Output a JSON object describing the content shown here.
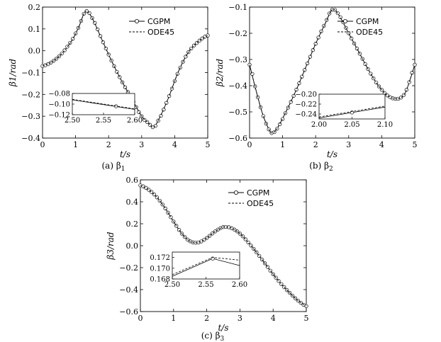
{
  "chart_data": [
    {
      "type": "line",
      "caption": "(a) β1",
      "xlabel": "t/s",
      "ylabel": "β1/rad",
      "xlim": [
        0,
        5
      ],
      "ylim": [
        -0.4,
        0.2
      ],
      "xticks": [
        0,
        1,
        2,
        3,
        4,
        5
      ],
      "yticks": [
        -0.4,
        -0.3,
        -0.2,
        -0.1,
        0.0,
        0.1,
        0.2
      ],
      "xtick_labels": [
        "0",
        "1",
        "2",
        "3",
        "4",
        "5"
      ],
      "ytick_labels": [
        "−0.4",
        "−0.3",
        "−0.2",
        "−0.1",
        "0.0",
        "0.1",
        "0.2"
      ],
      "legend": "top-right",
      "series": [
        {
          "name": "CGPM",
          "style": "solid-circle-markers",
          "x": [
            0,
            0.3,
            0.6,
            0.9,
            1.1,
            1.3,
            1.5,
            1.8,
            2.1,
            2.4,
            2.7,
            3.0,
            3.2,
            3.35,
            3.5,
            3.8,
            4.1,
            4.4,
            4.7,
            5.0
          ],
          "y": [
            -0.07,
            -0.05,
            -0.01,
            0.05,
            0.11,
            0.18,
            0.15,
            0.05,
            -0.05,
            -0.14,
            -0.22,
            -0.3,
            -0.33,
            -0.35,
            -0.32,
            -0.22,
            -0.1,
            -0.01,
            0.04,
            0.07
          ]
        },
        {
          "name": "ODE45",
          "style": "dashed",
          "x": [
            0,
            0.3,
            0.6,
            0.9,
            1.1,
            1.3,
            1.5,
            1.8,
            2.1,
            2.4,
            2.7,
            3.0,
            3.2,
            3.35,
            3.5,
            3.8,
            4.1,
            4.4,
            4.7,
            5.0
          ],
          "y": [
            -0.07,
            -0.05,
            -0.01,
            0.05,
            0.11,
            0.18,
            0.15,
            0.05,
            -0.05,
            -0.14,
            -0.22,
            -0.3,
            -0.33,
            -0.35,
            -0.32,
            -0.22,
            -0.1,
            -0.01,
            0.04,
            0.07
          ]
        }
      ],
      "inset": {
        "xlim": [
          2.5,
          2.6
        ],
        "ylim": [
          -0.12,
          -0.08
        ],
        "xtick_labels": [
          "2.50",
          "2.55",
          "2.60"
        ],
        "ytick_labels": [
          "−0.08",
          "−0.10",
          "−0.12"
        ],
        "xticks": [
          2.5,
          2.55,
          2.6
        ],
        "yticks": [
          -0.08,
          -0.1,
          -0.12
        ],
        "series": [
          {
            "name": "CGPM",
            "x": [
              2.5,
              2.6
            ],
            "y": [
              -0.092,
              -0.11
            ],
            "markers": [
              [
                2.57,
                -0.104
              ]
            ]
          },
          {
            "name": "ODE45",
            "x": [
              2.5,
              2.6
            ],
            "y": [
              -0.091,
              -0.109
            ]
          }
        ]
      }
    },
    {
      "type": "line",
      "caption": "(b) β2",
      "xlabel": "t/s",
      "ylabel": "β2/rad",
      "xlim": [
        0,
        5
      ],
      "ylim": [
        -0.6,
        -0.1
      ],
      "xticks": [
        0,
        1,
        2,
        3,
        4,
        5
      ],
      "yticks": [
        -0.6,
        -0.5,
        -0.4,
        -0.3,
        -0.2,
        -0.1
      ],
      "xtick_labels": [
        "0",
        "1",
        "2",
        "3",
        "4",
        "5"
      ],
      "ytick_labels": [
        "−0.6",
        "−0.5",
        "−0.4",
        "−0.3",
        "−0.2",
        "−0.1"
      ],
      "legend": "top-right",
      "series": [
        {
          "name": "CGPM",
          "style": "solid-circle-markers",
          "x": [
            0,
            0.2,
            0.4,
            0.6,
            0.7,
            0.85,
            1.1,
            1.4,
            1.7,
            2.0,
            2.3,
            2.5,
            2.7,
            3.0,
            3.3,
            3.6,
            3.9,
            4.2,
            4.5,
            4.7,
            4.85,
            5.0
          ],
          "y": [
            -0.32,
            -0.42,
            -0.51,
            -0.57,
            -0.58,
            -0.56,
            -0.5,
            -0.42,
            -0.33,
            -0.24,
            -0.16,
            -0.11,
            -0.13,
            -0.2,
            -0.27,
            -0.34,
            -0.4,
            -0.44,
            -0.45,
            -0.43,
            -0.38,
            -0.32
          ]
        },
        {
          "name": "ODE45",
          "style": "dashed",
          "x": [
            0,
            0.2,
            0.4,
            0.6,
            0.7,
            0.85,
            1.1,
            1.4,
            1.7,
            2.0,
            2.3,
            2.5,
            2.7,
            3.0,
            3.3,
            3.6,
            3.9,
            4.2,
            4.5,
            4.7,
            4.85,
            5.0
          ],
          "y": [
            -0.32,
            -0.42,
            -0.51,
            -0.57,
            -0.58,
            -0.56,
            -0.5,
            -0.42,
            -0.33,
            -0.24,
            -0.16,
            -0.11,
            -0.13,
            -0.2,
            -0.27,
            -0.34,
            -0.4,
            -0.44,
            -0.45,
            -0.43,
            -0.38,
            -0.32
          ]
        }
      ],
      "inset": {
        "xlim": [
          2.0,
          2.1
        ],
        "ylim": [
          -0.25,
          -0.2
        ],
        "xtick_labels": [
          "2.00",
          "2.05",
          "2.10"
        ],
        "ytick_labels": [
          "−0.20",
          "−0.22",
          "−0.24"
        ],
        "xticks": [
          2.0,
          2.05,
          2.1
        ],
        "yticks": [
          -0.2,
          -0.22,
          -0.24
        ],
        "series": [
          {
            "name": "CGPM",
            "x": [
              2.0,
              2.1
            ],
            "y": [
              -0.248,
              -0.226
            ],
            "markers": [
              [
                2.05,
                -0.237
              ]
            ]
          },
          {
            "name": "ODE45",
            "x": [
              2.0,
              2.1
            ],
            "y": [
              -0.246,
              -0.224
            ]
          }
        ]
      }
    },
    {
      "type": "line",
      "caption": "(c) β3",
      "xlabel": "t/s",
      "ylabel": "β3/rad",
      "xlim": [
        0,
        5
      ],
      "ylim": [
        -0.6,
        0.6
      ],
      "xticks": [
        0,
        1,
        2,
        3,
        4,
        5
      ],
      "yticks": [
        -0.6,
        -0.4,
        -0.2,
        0.0,
        0.2,
        0.4,
        0.6
      ],
      "xtick_labels": [
        "0",
        "1",
        "2",
        "3",
        "4",
        "5"
      ],
      "ytick_labels": [
        "−0.6",
        "−0.4",
        "−0.2",
        "0.0",
        "0.2",
        "0.4",
        "0.6"
      ],
      "legend": "top-right",
      "series": [
        {
          "name": "CGPM",
          "style": "solid-circle-markers",
          "x": [
            0,
            0.25,
            0.5,
            0.75,
            1.0,
            1.25,
            1.5,
            1.75,
            2.0,
            2.25,
            2.5,
            2.6,
            2.75,
            3.0,
            3.25,
            3.5,
            3.75,
            4.0,
            4.25,
            4.5,
            4.75,
            5.0
          ],
          "y": [
            0.55,
            0.51,
            0.44,
            0.34,
            0.22,
            0.11,
            0.04,
            0.03,
            0.07,
            0.13,
            0.17,
            0.17,
            0.16,
            0.11,
            0.03,
            -0.06,
            -0.16,
            -0.26,
            -0.35,
            -0.43,
            -0.5,
            -0.55
          ]
        },
        {
          "name": "ODE45",
          "style": "dashed",
          "x": [
            0,
            0.25,
            0.5,
            0.75,
            1.0,
            1.25,
            1.5,
            1.75,
            2.0,
            2.25,
            2.5,
            2.6,
            2.75,
            3.0,
            3.25,
            3.5,
            3.75,
            4.0,
            4.25,
            4.5,
            4.75,
            5.0
          ],
          "y": [
            0.55,
            0.51,
            0.44,
            0.34,
            0.22,
            0.11,
            0.04,
            0.03,
            0.07,
            0.13,
            0.17,
            0.17,
            0.16,
            0.11,
            0.03,
            -0.06,
            -0.16,
            -0.26,
            -0.35,
            -0.43,
            -0.5,
            -0.55
          ]
        }
      ],
      "inset": {
        "xlim": [
          2.5,
          2.6
        ],
        "ylim": [
          0.168,
          0.173
        ],
        "xtick_labels": [
          "2.50",
          "2.55",
          "2.60"
        ],
        "ytick_labels": [
          "0.172",
          "0.170",
          "0.168"
        ],
        "xticks": [
          2.5,
          2.55,
          2.6
        ],
        "yticks": [
          0.172,
          0.17,
          0.168
        ],
        "series": [
          {
            "name": "CGPM",
            "x": [
              2.5,
              2.56,
              2.6
            ],
            "y": [
              0.1685,
              0.1718,
              0.1705
            ],
            "markers": [
              [
                2.56,
                0.1718
              ]
            ]
          },
          {
            "name": "ODE45",
            "x": [
              2.5,
              2.56,
              2.6
            ],
            "y": [
              0.1688,
              0.172,
              0.1715
            ]
          }
        ]
      }
    }
  ]
}
